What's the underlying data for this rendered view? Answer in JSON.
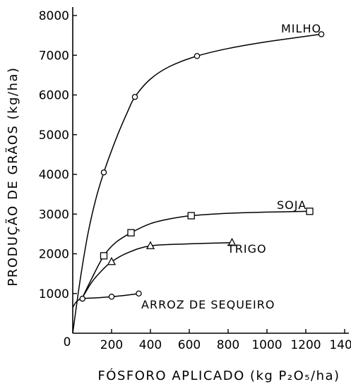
{
  "chart_data": {
    "type": "line",
    "xlabel": "FÓSFORO APLICADO (kg P₂O₅/ha)",
    "ylabel": "PRODUÇÃO DE GRÃOS (kg/ha)",
    "xlim": [
      0,
      1400
    ],
    "ylim": [
      0,
      8000
    ],
    "x_ticks": [
      200,
      400,
      600,
      800,
      1000,
      1200,
      1400
    ],
    "y_ticks": [
      1000,
      2000,
      3000,
      4000,
      5000,
      6000,
      7000,
      8000
    ],
    "origin_label": "0",
    "grid": false,
    "series": [
      {
        "name": "MILHO",
        "marker": "circle",
        "points": [
          [
            160,
            4050
          ],
          [
            320,
            5950
          ],
          [
            640,
            6980
          ],
          [
            1280,
            7530
          ]
        ],
        "curve": [
          [
            0,
            0
          ],
          [
            40,
            1400
          ],
          [
            80,
            2550
          ],
          [
            120,
            3400
          ],
          [
            160,
            4050
          ],
          [
            200,
            4600
          ],
          [
            240,
            5100
          ],
          [
            280,
            5550
          ],
          [
            320,
            5950
          ],
          [
            400,
            6400
          ],
          [
            500,
            6720
          ],
          [
            640,
            6980
          ],
          [
            800,
            7170
          ],
          [
            1000,
            7340
          ],
          [
            1280,
            7530
          ]
        ]
      },
      {
        "name": "SOJA",
        "marker": "square",
        "points": [
          [
            160,
            1950
          ],
          [
            300,
            2530
          ],
          [
            610,
            2960
          ],
          [
            1220,
            3070
          ]
        ],
        "curve": [
          [
            50,
            900
          ],
          [
            100,
            1400
          ],
          [
            160,
            1950
          ],
          [
            220,
            2280
          ],
          [
            300,
            2530
          ],
          [
            400,
            2760
          ],
          [
            500,
            2880
          ],
          [
            610,
            2960
          ],
          [
            800,
            3020
          ],
          [
            1000,
            3050
          ],
          [
            1220,
            3070
          ]
        ]
      },
      {
        "name": "TRIGO",
        "marker": "triangle",
        "points": [
          [
            200,
            1800
          ],
          [
            400,
            2200
          ],
          [
            820,
            2280
          ]
        ],
        "curve": [
          [
            50,
            900
          ],
          [
            100,
            1300
          ],
          [
            150,
            1580
          ],
          [
            200,
            1800
          ],
          [
            280,
            2020
          ],
          [
            400,
            2200
          ],
          [
            600,
            2250
          ],
          [
            820,
            2280
          ]
        ]
      },
      {
        "name": "ARROZ DE SEQUEIRO",
        "marker": "circle",
        "points": [
          [
            50,
            870
          ],
          [
            200,
            920
          ],
          [
            340,
            1000
          ]
        ],
        "curve": [
          [
            0,
            650
          ],
          [
            20,
            800
          ],
          [
            50,
            870
          ],
          [
            120,
            890
          ],
          [
            200,
            920
          ],
          [
            280,
            960
          ],
          [
            340,
            1000
          ]
        ]
      }
    ]
  }
}
